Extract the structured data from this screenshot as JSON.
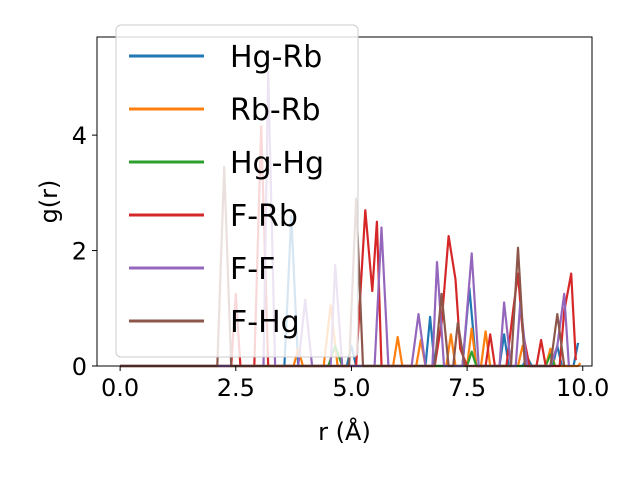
{
  "chart_data": {
    "type": "line",
    "xlabel": "r (Å)",
    "ylabel": "g(r)",
    "xlim": [
      -0.5,
      10.2
    ],
    "ylim": [
      0,
      5.7
    ],
    "xticks": [
      0.0,
      2.5,
      5.0,
      7.5,
      10.0
    ],
    "xtick_labels": [
      "0.0",
      "2.5",
      "5.0",
      "7.5",
      "10.0"
    ],
    "yticks": [
      0,
      2,
      4
    ],
    "ytick_labels": [
      "0",
      "2",
      "4"
    ],
    "grid": false,
    "legend_position": "top-left",
    "series": [
      {
        "name": "Hg-Rb",
        "color": "#1f77b4",
        "points": [
          [
            0,
            0
          ],
          [
            3.55,
            0
          ],
          [
            3.7,
            2.6
          ],
          [
            3.85,
            0
          ],
          [
            4.9,
            0
          ],
          [
            5.0,
            0.35
          ],
          [
            5.1,
            0
          ],
          [
            6.6,
            0
          ],
          [
            6.7,
            0.85
          ],
          [
            6.8,
            0
          ],
          [
            7.4,
            0
          ],
          [
            7.55,
            1.35
          ],
          [
            7.7,
            0
          ],
          [
            8.2,
            0
          ],
          [
            8.3,
            0.55
          ],
          [
            8.4,
            0
          ],
          [
            8.7,
            0
          ],
          [
            8.8,
            0.15
          ],
          [
            8.9,
            0
          ],
          [
            9.35,
            0
          ],
          [
            9.45,
            0.35
          ],
          [
            9.55,
            0
          ],
          [
            9.8,
            0
          ],
          [
            9.9,
            0.4
          ]
        ]
      },
      {
        "name": "Rb-Rb",
        "color": "#ff7f0e",
        "points": [
          [
            0,
            0
          ],
          [
            3.75,
            0
          ],
          [
            3.85,
            0.3
          ],
          [
            3.95,
            0
          ],
          [
            4.4,
            0
          ],
          [
            4.55,
            1.05
          ],
          [
            4.7,
            0
          ],
          [
            5.9,
            0
          ],
          [
            6.0,
            0.5
          ],
          [
            6.1,
            0
          ],
          [
            6.4,
            0
          ],
          [
            6.5,
            0.45
          ],
          [
            6.6,
            0
          ],
          [
            7.05,
            0
          ],
          [
            7.15,
            0.55
          ],
          [
            7.25,
            0
          ],
          [
            7.5,
            0
          ],
          [
            7.6,
            0.65
          ],
          [
            7.7,
            0
          ],
          [
            7.8,
            0
          ],
          [
            7.9,
            0.6
          ],
          [
            8.0,
            0
          ],
          [
            8.6,
            0
          ],
          [
            8.7,
            0.35
          ],
          [
            8.8,
            0
          ],
          [
            9.2,
            0
          ],
          [
            9.3,
            0.3
          ],
          [
            9.4,
            0
          ],
          [
            9.9,
            0
          ],
          [
            9.95,
            0.05
          ]
        ]
      },
      {
        "name": "Hg-Hg",
        "color": "#2ca02c",
        "points": [
          [
            0,
            0
          ],
          [
            4.5,
            0
          ],
          [
            4.65,
            0.35
          ],
          [
            4.8,
            0
          ],
          [
            7.5,
            0
          ],
          [
            7.6,
            0.25
          ],
          [
            7.7,
            0
          ],
          [
            9.2,
            0
          ],
          [
            9.3,
            0.2
          ],
          [
            9.4,
            0
          ]
        ]
      },
      {
        "name": "F-Rb",
        "color": "#d62728",
        "points": [
          [
            0,
            0
          ],
          [
            2.4,
            0
          ],
          [
            2.5,
            1.25
          ],
          [
            2.6,
            0
          ],
          [
            2.9,
            0
          ],
          [
            3.05,
            4.15
          ],
          [
            3.2,
            0
          ],
          [
            5.1,
            0
          ],
          [
            5.3,
            2.7
          ],
          [
            5.45,
            1.3
          ],
          [
            5.55,
            2.5
          ],
          [
            5.65,
            0
          ],
          [
            6.8,
            0
          ],
          [
            6.95,
            0.75
          ],
          [
            7.1,
            2.25
          ],
          [
            7.25,
            1.5
          ],
          [
            7.35,
            0.3
          ],
          [
            7.5,
            0
          ],
          [
            7.9,
            0
          ],
          [
            8.0,
            0.55
          ],
          [
            8.1,
            0
          ],
          [
            8.35,
            0
          ],
          [
            8.5,
            1.0
          ],
          [
            8.6,
            1.6
          ],
          [
            8.7,
            0.6
          ],
          [
            8.85,
            0
          ],
          [
            9.0,
            0
          ],
          [
            9.1,
            0.45
          ],
          [
            9.2,
            0
          ],
          [
            9.5,
            0
          ],
          [
            9.6,
            0.95
          ],
          [
            9.75,
            1.6
          ],
          [
            9.85,
            0.1
          ]
        ]
      },
      {
        "name": "F-F",
        "color": "#9467bd",
        "points": [
          [
            0,
            0
          ],
          [
            3.1,
            0
          ],
          [
            3.2,
            5.1
          ],
          [
            3.35,
            0
          ],
          [
            3.85,
            0
          ],
          [
            4.0,
            1.15
          ],
          [
            4.15,
            0
          ],
          [
            4.55,
            0
          ],
          [
            4.65,
            1.75
          ],
          [
            4.8,
            0
          ],
          [
            5.5,
            0
          ],
          [
            5.65,
            2.4
          ],
          [
            5.8,
            0
          ],
          [
            6.3,
            0
          ],
          [
            6.45,
            0.9
          ],
          [
            6.6,
            0
          ],
          [
            6.75,
            0
          ],
          [
            6.85,
            1.8
          ],
          [
            7.0,
            0
          ],
          [
            7.4,
            0
          ],
          [
            7.6,
            1.95
          ],
          [
            7.75,
            0
          ],
          [
            8.2,
            0
          ],
          [
            8.3,
            1.1
          ],
          [
            8.45,
            0
          ],
          [
            8.55,
            0
          ],
          [
            8.65,
            1.1
          ],
          [
            8.8,
            0
          ],
          [
            9.3,
            0
          ],
          [
            9.45,
            0.35
          ],
          [
            9.6,
            1.25
          ],
          [
            9.7,
            0
          ]
        ]
      },
      {
        "name": "F-Hg",
        "color": "#8c564b",
        "points": [
          [
            0,
            0
          ],
          [
            2.1,
            0
          ],
          [
            2.25,
            3.45
          ],
          [
            2.4,
            0
          ],
          [
            4.95,
            0
          ],
          [
            5.1,
            2.9
          ],
          [
            5.25,
            0
          ],
          [
            6.8,
            0
          ],
          [
            6.95,
            1.25
          ],
          [
            7.1,
            0
          ],
          [
            7.2,
            0
          ],
          [
            7.3,
            0.75
          ],
          [
            7.45,
            0
          ],
          [
            8.45,
            0
          ],
          [
            8.6,
            2.05
          ],
          [
            8.75,
            0
          ],
          [
            9.3,
            0
          ],
          [
            9.45,
            0.9
          ],
          [
            9.6,
            0
          ]
        ]
      }
    ]
  }
}
